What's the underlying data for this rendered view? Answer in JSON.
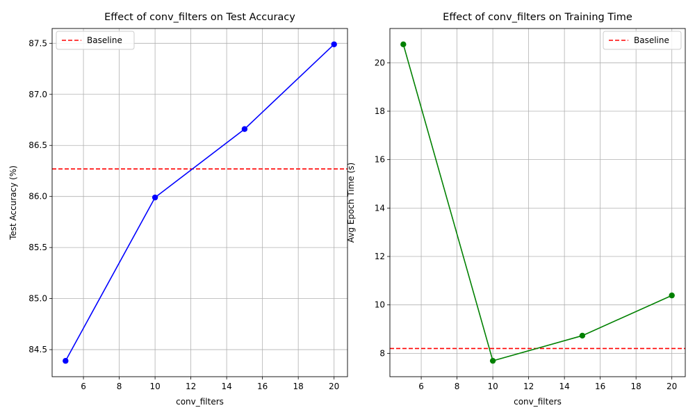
{
  "colors": {
    "accuracy_line": "#0000ff",
    "time_line": "#008000",
    "baseline": "#ff0000",
    "grid": "#b0b0b0",
    "axes": "#000000"
  },
  "chart_data": [
    {
      "type": "line",
      "title": "Effect of conv_filters on Test Accuracy",
      "xlabel": "conv_filters",
      "ylabel": "Test Accuracy (%)",
      "x": [
        5,
        10,
        15,
        20
      ],
      "series": [
        {
          "values": [
            84.39,
            85.99,
            86.66,
            87.49
          ],
          "color": "#0000ff",
          "marker": "circle"
        }
      ],
      "baseline": {
        "name": "Baseline",
        "value": 86.27,
        "color": "#ff0000",
        "style": "dashed"
      },
      "xticks": [
        6,
        8,
        10,
        12,
        14,
        16,
        18,
        20
      ],
      "yticks": [
        84.5,
        85.0,
        85.5,
        86.0,
        86.5,
        87.0,
        87.5
      ],
      "xlim": [
        4.25,
        20.75
      ],
      "ylim": [
        84.235,
        87.645
      ],
      "grid": true,
      "legend_position": "top-left"
    },
    {
      "type": "line",
      "title": "Effect of conv_filters on Training Time",
      "xlabel": "conv_filters",
      "ylabel": "Avg Epoch Time (s)",
      "x": [
        5,
        10,
        15,
        20
      ],
      "series": [
        {
          "values": [
            20.76,
            7.69,
            8.73,
            10.39
          ],
          "color": "#008000",
          "marker": "circle"
        }
      ],
      "baseline": {
        "name": "Baseline",
        "value": 8.2,
        "color": "#ff0000",
        "style": "dashed"
      },
      "xticks": [
        6,
        8,
        10,
        12,
        14,
        16,
        18,
        20
      ],
      "yticks": [
        8,
        10,
        12,
        14,
        16,
        18,
        20
      ],
      "xlim": [
        4.25,
        20.75
      ],
      "ylim": [
        7.035,
        21.415
      ],
      "grid": true,
      "legend_position": "top-right"
    }
  ]
}
